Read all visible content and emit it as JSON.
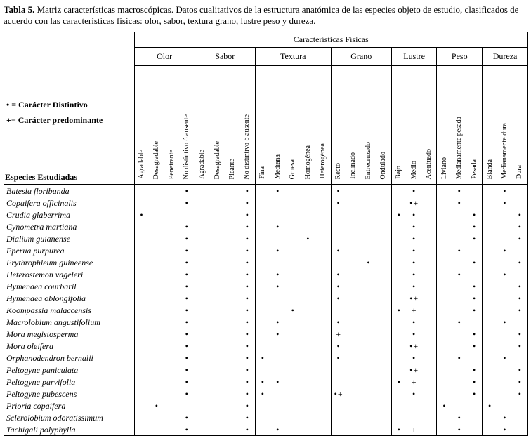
{
  "title": {
    "label": "Tabla 5.",
    "rest": " Matriz características macroscópicas. Datos cualitativos de la estructura anatómica de las especies objeto de estudio,  clasificados de acuerdo con las características  físicas: olor, sabor, textura grano, lustre peso y dureza."
  },
  "table": {
    "header": "Características Físicas",
    "legend": [
      "• = Carácter Distintivo",
      "+= Carácter predominante"
    ],
    "row_header": "Especies Estudiadas",
    "groups": [
      {
        "name": "Olor",
        "cols": [
          "Agradable",
          "Desagradable",
          "Penetrante",
          "No distintivo ó ausente"
        ]
      },
      {
        "name": "Sabor",
        "cols": [
          "Agradable",
          "Desagradable",
          "Picante",
          "No distintivo ó ausente"
        ]
      },
      {
        "name": "Textura",
        "cols": [
          "Fina",
          "Mediana",
          "Gruesa",
          "Homogénea",
          "Heterogénea"
        ]
      },
      {
        "name": "Grano",
        "cols": [
          "Recto",
          "Inclinado",
          "Entrecruzado",
          "Ondulado"
        ]
      },
      {
        "name": "Lustre",
        "cols": [
          "Bajo",
          "Medio",
          "Acentuado"
        ]
      },
      {
        "name": "Peso",
        "cols": [
          "Liviano",
          "Medianamente pesada",
          "Pesada"
        ]
      },
      {
        "name": "Dureza",
        "cols": [
          "Blanda",
          "Medianamente dura",
          "Dura"
        ]
      }
    ],
    "rows": [
      {
        "species": "Batesia floribunda",
        "marks": [
          "",
          "",
          "",
          "•",
          "",
          "",
          "",
          "•",
          "",
          "•",
          "",
          "",
          "",
          "•",
          "",
          "",
          "",
          "",
          "•",
          "",
          "",
          "•",
          "",
          "",
          "•",
          ""
        ]
      },
      {
        "species": "Copaifera officinalis",
        "marks": [
          "",
          "",
          "",
          "•",
          "",
          "",
          "",
          "•",
          "",
          "",
          "",
          "",
          "",
          "•",
          "",
          "",
          "",
          "",
          "•+",
          "",
          "",
          "•",
          "",
          "",
          "•",
          ""
        ]
      },
      {
        "species": "Crudia glaberrima",
        "marks": [
          "•",
          "",
          "",
          "",
          "",
          "",
          "",
          "•",
          "",
          "",
          "",
          "",
          "",
          "",
          "",
          "",
          "",
          "•",
          "•",
          "",
          "",
          "",
          "•",
          "",
          "",
          "•"
        ]
      },
      {
        "species": "Cynometra martiana",
        "marks": [
          "",
          "",
          "",
          "•",
          "",
          "",
          "",
          "•",
          "",
          "•",
          "",
          "",
          "",
          "",
          "",
          "",
          "",
          "",
          "•",
          "",
          "",
          "",
          "•",
          "",
          "",
          "•"
        ]
      },
      {
        "species": "Dialium guianense",
        "marks": [
          "",
          "",
          "",
          "•",
          "",
          "",
          "",
          "•",
          "",
          "",
          "",
          "•",
          "",
          "",
          "",
          "",
          "",
          "",
          "•",
          "",
          "",
          "",
          "•",
          "",
          "",
          "•"
        ]
      },
      {
        "species": "Eperua purpurea",
        "marks": [
          "",
          "",
          "",
          "•",
          "",
          "",
          "",
          "•",
          "",
          "•",
          "",
          "",
          "",
          "•",
          "",
          "",
          "",
          "",
          "•",
          "",
          "",
          "•",
          "",
          "",
          "•",
          ""
        ]
      },
      {
        "species": "Erythrophleum guineense",
        "marks": [
          "",
          "",
          "",
          "•",
          "",
          "",
          "",
          "•",
          "",
          "",
          "",
          "",
          "",
          "",
          "",
          "•",
          "",
          "",
          "•",
          "",
          "",
          "",
          "•",
          "",
          "",
          "•"
        ]
      },
      {
        "species": "Heterostemon vageleri",
        "marks": [
          "",
          "",
          "",
          "•",
          "",
          "",
          "",
          "•",
          "",
          "•",
          "",
          "",
          "",
          "•",
          "",
          "",
          "",
          "",
          "•",
          "",
          "",
          "•",
          "",
          "",
          "•",
          ""
        ]
      },
      {
        "species": "Hymenaea courbaril",
        "marks": [
          "",
          "",
          "",
          "•",
          "",
          "",
          "",
          "•",
          "",
          "•",
          "",
          "",
          "",
          "•",
          "",
          "",
          "",
          "",
          "•",
          "",
          "",
          "",
          "•",
          "",
          "",
          "•"
        ]
      },
      {
        "species": "Hymenaea oblongifolia",
        "marks": [
          "",
          "",
          "",
          "•",
          "",
          "",
          "",
          "•",
          "",
          "",
          "",
          "",
          "",
          "•",
          "",
          "",
          "",
          "",
          "•+",
          "",
          "",
          "",
          "•",
          "",
          "",
          "•"
        ]
      },
      {
        "species": "Koompassia malaccensis",
        "marks": [
          "",
          "",
          "",
          "•",
          "",
          "",
          "",
          "•",
          "",
          "",
          "•",
          "",
          "",
          "",
          "",
          "",
          "",
          "•",
          "+",
          "",
          "",
          "",
          "•",
          "",
          "",
          "•"
        ]
      },
      {
        "species": "Macrolobium angustifolium",
        "marks": [
          "",
          "",
          "",
          "•",
          "",
          "",
          "",
          "•",
          "",
          "•",
          "",
          "",
          "",
          "•",
          "",
          "",
          "",
          "",
          "•",
          "",
          "",
          "•",
          "",
          "",
          "•",
          ""
        ]
      },
      {
        "species": "Mora megistosperma",
        "marks": [
          "",
          "",
          "",
          "•",
          "",
          "",
          "",
          "•",
          "",
          "•",
          "",
          "",
          "",
          "+",
          "",
          "",
          "",
          "",
          "•",
          "",
          "",
          "",
          "•",
          "",
          "",
          "•"
        ]
      },
      {
        "species": "Mora oleifera",
        "marks": [
          "",
          "",
          "",
          "•",
          "",
          "",
          "",
          "•",
          "",
          "",
          "",
          "",
          "",
          "•",
          "",
          "",
          "",
          "",
          "•+",
          "",
          "",
          "",
          "•",
          "",
          "",
          "•"
        ]
      },
      {
        "species": "Orphanodendron bernalii",
        "marks": [
          "",
          "",
          "",
          "•",
          "",
          "",
          "",
          "•",
          "•",
          "",
          "",
          "",
          "",
          "•",
          "",
          "",
          "",
          "",
          "•",
          "",
          "",
          "•",
          "",
          "",
          "•",
          ""
        ]
      },
      {
        "species": "Peltogyne paniculata",
        "marks": [
          "",
          "",
          "",
          "•",
          "",
          "",
          "",
          "•",
          "",
          "",
          "",
          "",
          "",
          "",
          "",
          "",
          "",
          "",
          "•+",
          "",
          "",
          "",
          "•",
          "",
          "",
          "•"
        ]
      },
      {
        "species": "Peltogyne parvifolia",
        "marks": [
          "",
          "",
          "",
          "•",
          "",
          "",
          "",
          "•",
          "•",
          "•",
          "",
          "",
          "",
          "",
          "",
          "",
          "",
          "•",
          "+",
          "",
          "",
          "",
          "•",
          "",
          "",
          "•"
        ]
      },
      {
        "species": "Peltogyne pubescens",
        "marks": [
          "",
          "",
          "",
          "•",
          "",
          "",
          "",
          "•",
          "•",
          "",
          "",
          "",
          "",
          "•+",
          "",
          "",
          "",
          "",
          "•",
          "",
          "",
          "",
          "•",
          "",
          "",
          "•"
        ]
      },
      {
        "species": "Prioria copaifera",
        "marks": [
          "",
          "•",
          "",
          "",
          "",
          "",
          "",
          "•",
          "",
          "",
          "",
          "",
          "",
          "",
          "",
          "",
          "",
          "",
          "",
          "",
          "•",
          "",
          "",
          "•",
          "",
          ""
        ]
      },
      {
        "species": "Sclerolobium odoratissimum",
        "marks": [
          "",
          "",
          "",
          "•",
          "",
          "",
          "",
          "•",
          "",
          "",
          "",
          "",
          "",
          "",
          "",
          "",
          "",
          "",
          "",
          "",
          "",
          "•",
          "",
          "",
          "•",
          ""
        ]
      },
      {
        "species": "Tachigali polyphylla",
        "marks": [
          "",
          "",
          "",
          "•",
          "",
          "",
          "",
          "•",
          "",
          "•",
          "",
          "",
          "",
          "",
          "",
          "",
          "",
          "•",
          "+",
          "",
          "",
          "•",
          "",
          "",
          "•",
          ""
        ]
      }
    ]
  }
}
